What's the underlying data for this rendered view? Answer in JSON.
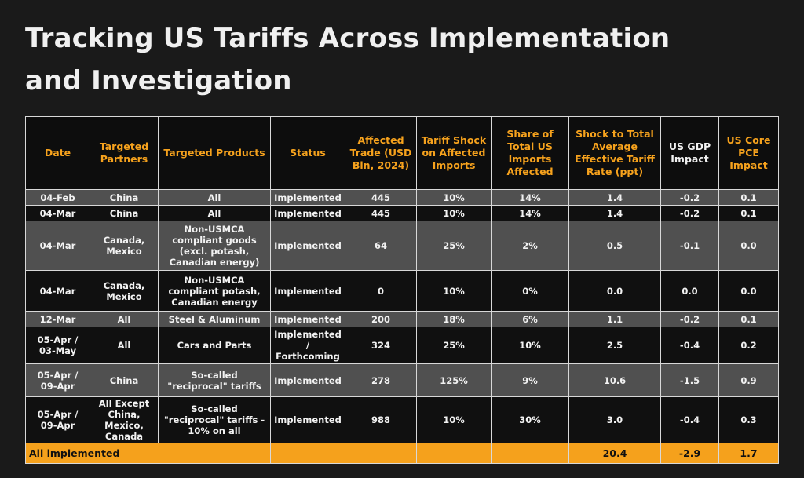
{
  "title": "Tracking US Tariffs Across Implementation and Investigation",
  "table": {
    "headers": [
      "Date",
      "Targeted Partners",
      "Targeted Products",
      "Status",
      "Affected Trade (USD Bln, 2024)",
      "Tariff Shock on Affected Imports",
      "Share of Total US Imports Affected",
      "Shock to Total Average Effective Tariff Rate (ppt)",
      "US GDP Impact",
      "US Core PCE Impact"
    ],
    "rows": [
      [
        "04-Feb",
        "China",
        "All",
        "Implemented",
        "445",
        "10%",
        "14%",
        "1.4",
        "-0.2",
        "0.1"
      ],
      [
        "04-Mar",
        "China",
        "All",
        "Implemented",
        "445",
        "10%",
        "14%",
        "1.4",
        "-0.2",
        "0.1"
      ],
      [
        "04-Mar",
        "Canada, Mexico",
        "Non-USMCA compliant goods (excl. potash, Canadian energy)",
        "Implemented",
        "64",
        "25%",
        "2%",
        "0.5",
        "-0.1",
        "0.0"
      ],
      [
        "04-Mar",
        "Canada, Mexico",
        "Non-USMCA compliant potash, Canadian energy",
        "Implemented",
        "0",
        "10%",
        "0%",
        "0.0",
        "0.0",
        "0.0"
      ],
      [
        "12-Mar",
        "All",
        "Steel & Aluminum",
        "Implemented",
        "200",
        "18%",
        "6%",
        "1.1",
        "-0.2",
        "0.1"
      ],
      [
        "05-Apr / 03-May",
        "All",
        "Cars and Parts",
        "Implemented / Forthcoming",
        "324",
        "25%",
        "10%",
        "2.5",
        "-0.4",
        "0.2"
      ],
      [
        "05-Apr / 09-Apr",
        "China",
        "So-called \"reciprocal\" tariffs",
        "Implemented",
        "278",
        "125%",
        "9%",
        "10.6",
        "-1.5",
        "0.9"
      ],
      [
        "05-Apr / 09-Apr",
        "All Except China, Mexico, Canada",
        "So-called \"reciprocal\" tariffs - 10% on all",
        "Implemented",
        "988",
        "10%",
        "30%",
        "3.0",
        "-0.4",
        "0.3"
      ]
    ],
    "total": {
      "label": "All implemented",
      "tariff_rate": "20.4",
      "gdp": "-2.9",
      "pce": "1.7"
    }
  },
  "colors": {
    "accent": "#f6a21d",
    "background": "#1a1a1a",
    "row_light": "#505050",
    "row_dark": "#101010"
  }
}
